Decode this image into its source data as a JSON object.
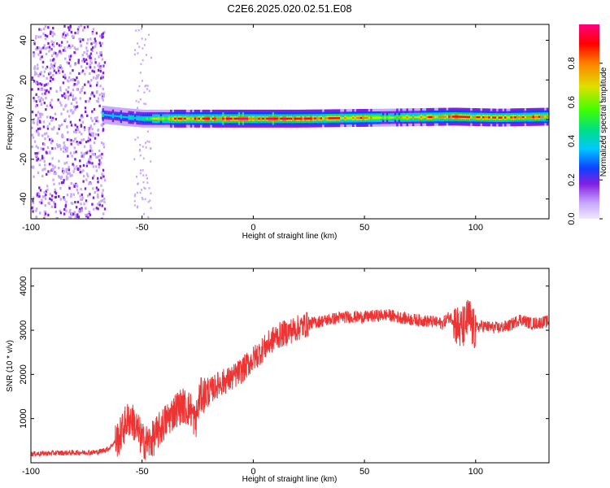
{
  "title": "C2E6.2025.020.02.51.E08",
  "chart_data": [
    {
      "type": "heatmap",
      "xlabel": "Height of straight line (km)",
      "ylabel": "Frequency (Hz)",
      "xlim": [
        -100,
        133
      ],
      "ylim": [
        -50,
        48
      ],
      "xticks": [
        -100,
        -50,
        0,
        50,
        100
      ],
      "yticks": [
        -40,
        -20,
        0,
        20,
        40
      ],
      "colorbar": {
        "label": "Normalized spectral amplitude",
        "range": [
          0,
          1
        ],
        "ticks": [
          "0.0",
          "0.2",
          "0.4",
          "0.6",
          "0.8"
        ],
        "colors": [
          "#e8ddff",
          "#c8a8ff",
          "#8020e0",
          "#1040ff",
          "#00c8ff",
          "#00e080",
          "#40ff00",
          "#e0e000",
          "#ff8000",
          "#ff0000",
          "#ff0080"
        ]
      },
      "features": {
        "noise_region_x": [
          -100,
          -67
        ],
        "sparse_column_x": -50,
        "signal_band": [
          {
            "x": -68,
            "freq": 2.5,
            "amp": 0.45
          },
          {
            "x": -60,
            "freq": 1.5,
            "amp": 0.45
          },
          {
            "x": -50,
            "freq": 0.5,
            "amp": 0.5
          },
          {
            "x": -35,
            "freq": 0.5,
            "amp": 0.8
          },
          {
            "x": -10,
            "freq": 0.5,
            "amp": 0.9
          },
          {
            "x": 20,
            "freq": 0.5,
            "amp": 0.9
          },
          {
            "x": 60,
            "freq": 1.0,
            "amp": 0.7
          },
          {
            "x": 90,
            "freq": 1.5,
            "amp": 0.85
          },
          {
            "x": 110,
            "freq": 1.0,
            "amp": 0.8
          },
          {
            "x": 133,
            "freq": 1.5,
            "amp": 0.85
          }
        ]
      }
    },
    {
      "type": "line",
      "xlabel": "Height of straight line (km)",
      "ylabel": "SNR (10 * v/v)",
      "xlim": [
        -100,
        133
      ],
      "ylim": [
        0,
        4400
      ],
      "xticks": [
        -100,
        -50,
        0,
        50,
        100
      ],
      "yticks": [
        1000,
        2000,
        3000,
        4000
      ],
      "color": "#ee3333",
      "series": [
        {
          "x": [
            -100,
            -90,
            -80,
            -70,
            -65,
            -60,
            -57,
            -55,
            -52,
            -50,
            -47,
            -45,
            -40,
            -35,
            -32,
            -28,
            -26,
            -24,
            -20,
            -15,
            -10,
            -5,
            0,
            5,
            10,
            15,
            20,
            25,
            30,
            40,
            50,
            60,
            70,
            80,
            85,
            88,
            90,
            93,
            95,
            97,
            99,
            102,
            110,
            115,
            120,
            125,
            133
          ],
          "y": [
            200,
            220,
            230,
            240,
            320,
            600,
            950,
            1000,
            750,
            500,
            450,
            550,
            900,
            1200,
            1300,
            1200,
            900,
            1500,
            1600,
            1800,
            1900,
            2100,
            2350,
            2600,
            2850,
            2950,
            3050,
            3150,
            3200,
            3300,
            3300,
            3350,
            3250,
            3200,
            3150,
            3300,
            3250,
            3000,
            3100,
            3300,
            3000,
            3100,
            3050,
            3100,
            3250,
            3150,
            3200
          ]
        }
      ]
    }
  ]
}
